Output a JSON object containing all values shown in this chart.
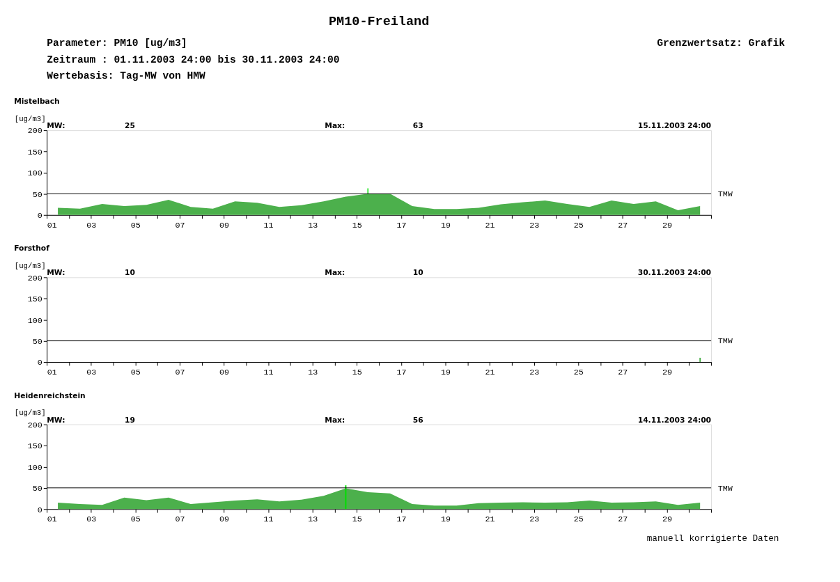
{
  "chart_data": [
    {
      "type": "other",
      "title": "PM10-Freiland",
      "annotations": [
        "Parameter: PM10 [ug/m3]",
        "Grenzwertsatz: Grafik",
        "Zeitraum  : 01.11.2003 24:00 bis 30.11.2003 24:00",
        "Wertebasis: Tag-MW von HMW"
      ]
    },
    {
      "type": "area",
      "title": "Mistelbach",
      "ylabel": "[ug/m3]",
      "annotations": [
        "MW:",
        "25",
        "Max:",
        "63",
        "15.11.2003  24:00"
      ],
      "xlim": [
        1,
        31
      ],
      "xticks": [
        {
          "value": 1,
          "label": "01"
        },
        {
          "value": 2,
          "label": null
        },
        {
          "value": 3,
          "label": "03"
        },
        {
          "value": 4,
          "label": null
        },
        {
          "value": 5,
          "label": "05"
        },
        {
          "value": 6,
          "label": null
        },
        {
          "value": 7,
          "label": "07"
        },
        {
          "value": 8,
          "label": null
        },
        {
          "value": 9,
          "label": "09"
        },
        {
          "value": 10,
          "label": null
        },
        {
          "value": 11,
          "label": "11"
        },
        {
          "value": 12,
          "label": null
        },
        {
          "value": 13,
          "label": "13"
        },
        {
          "value": 14,
          "label": null
        },
        {
          "value": 15,
          "label": "15"
        },
        {
          "value": 16,
          "label": null
        },
        {
          "value": 17,
          "label": "17"
        },
        {
          "value": 18,
          "label": null
        },
        {
          "value": 19,
          "label": "19"
        },
        {
          "value": 20,
          "label": null
        },
        {
          "value": 21,
          "label": "21"
        },
        {
          "value": 22,
          "label": null
        },
        {
          "value": 23,
          "label": "23"
        },
        {
          "value": 24,
          "label": null
        },
        {
          "value": 25,
          "label": "25"
        },
        {
          "value": 26,
          "label": null
        },
        {
          "value": 27,
          "label": "27"
        },
        {
          "value": 28,
          "label": null
        },
        {
          "value": 29,
          "label": "29"
        },
        {
          "value": 30,
          "label": null
        },
        {
          "value": 31,
          "label": null
        }
      ],
      "ylim": [
        0,
        200
      ],
      "yticks": [
        0,
        50,
        100,
        150,
        200
      ],
      "ref_lines": [
        {
          "axis": "y",
          "value": 50,
          "label": "TMW",
          "color": "#000000"
        }
      ],
      "series": [
        {
          "type": "area",
          "color": "#4cb04c",
          "x": [
            1.5,
            2.5,
            3.5,
            4.5,
            5.5,
            6.5,
            7.5,
            8.5,
            9.5,
            10.5,
            11.5,
            12.5,
            13.5,
            14.5,
            15.5,
            16.5,
            17.5,
            18.5,
            19.5,
            20.5,
            21.5,
            22.5,
            23.5,
            24.5,
            25.5,
            26.5,
            27.5,
            28.5,
            29.5,
            30.5
          ],
          "values": [
            17,
            15,
            26,
            21,
            24,
            36,
            19,
            15,
            32,
            29,
            19,
            23,
            32,
            43,
            50,
            50,
            21,
            14,
            14,
            17,
            25,
            30,
            34,
            26,
            19,
            34,
            26,
            32,
            11,
            21
          ]
        },
        {
          "type": "line",
          "color": "#00e000",
          "x": [
            15.5,
            15.5
          ],
          "values": [
            50,
            63
          ]
        }
      ]
    },
    {
      "type": "area",
      "title": "Forsthof",
      "ylabel": "[ug/m3]",
      "annotations": [
        "MW:",
        "10",
        "Max:",
        "10",
        "30.11.2003  24:00"
      ],
      "xlim": [
        1,
        31
      ],
      "xticks": [
        {
          "value": 1,
          "label": "01"
        },
        {
          "value": 2,
          "label": null
        },
        {
          "value": 3,
          "label": "03"
        },
        {
          "value": 4,
          "label": null
        },
        {
          "value": 5,
          "label": "05"
        },
        {
          "value": 6,
          "label": null
        },
        {
          "value": 7,
          "label": "07"
        },
        {
          "value": 8,
          "label": null
        },
        {
          "value": 9,
          "label": "09"
        },
        {
          "value": 10,
          "label": null
        },
        {
          "value": 11,
          "label": "11"
        },
        {
          "value": 12,
          "label": null
        },
        {
          "value": 13,
          "label": "13"
        },
        {
          "value": 14,
          "label": null
        },
        {
          "value": 15,
          "label": "15"
        },
        {
          "value": 16,
          "label": null
        },
        {
          "value": 17,
          "label": "17"
        },
        {
          "value": 18,
          "label": null
        },
        {
          "value": 19,
          "label": "19"
        },
        {
          "value": 20,
          "label": null
        },
        {
          "value": 21,
          "label": "21"
        },
        {
          "value": 22,
          "label": null
        },
        {
          "value": 23,
          "label": "23"
        },
        {
          "value": 24,
          "label": null
        },
        {
          "value": 25,
          "label": "25"
        },
        {
          "value": 26,
          "label": null
        },
        {
          "value": 27,
          "label": "27"
        },
        {
          "value": 28,
          "label": null
        },
        {
          "value": 29,
          "label": "29"
        },
        {
          "value": 30,
          "label": null
        },
        {
          "value": 31,
          "label": null
        }
      ],
      "ylim": [
        0,
        200
      ],
      "yticks": [
        0,
        50,
        100,
        150,
        200
      ],
      "ref_lines": [
        {
          "axis": "y",
          "value": 50,
          "label": "TMW",
          "color": "#000000"
        }
      ],
      "series": [
        {
          "type": "bar",
          "color": "#4cb04c",
          "x": [
            30.5
          ],
          "values": [
            10
          ]
        }
      ]
    },
    {
      "type": "area",
      "title": "Heidenreichstein",
      "ylabel": "[ug/m3]",
      "annotations": [
        "MW:",
        "19",
        "Max:",
        "56",
        "14.11.2003  24:00",
        "manuell korrigierte Daten"
      ],
      "xlim": [
        1,
        31
      ],
      "xticks": [
        {
          "value": 1,
          "label": "01"
        },
        {
          "value": 2,
          "label": null
        },
        {
          "value": 3,
          "label": "03"
        },
        {
          "value": 4,
          "label": null
        },
        {
          "value": 5,
          "label": "05"
        },
        {
          "value": 6,
          "label": null
        },
        {
          "value": 7,
          "label": "07"
        },
        {
          "value": 8,
          "label": null
        },
        {
          "value": 9,
          "label": "09"
        },
        {
          "value": 10,
          "label": null
        },
        {
          "value": 11,
          "label": "11"
        },
        {
          "value": 12,
          "label": null
        },
        {
          "value": 13,
          "label": "13"
        },
        {
          "value": 14,
          "label": null
        },
        {
          "value": 15,
          "label": "15"
        },
        {
          "value": 16,
          "label": null
        },
        {
          "value": 17,
          "label": "17"
        },
        {
          "value": 18,
          "label": null
        },
        {
          "value": 19,
          "label": "19"
        },
        {
          "value": 20,
          "label": null
        },
        {
          "value": 21,
          "label": "21"
        },
        {
          "value": 22,
          "label": null
        },
        {
          "value": 23,
          "label": "23"
        },
        {
          "value": 24,
          "label": null
        },
        {
          "value": 25,
          "label": "25"
        },
        {
          "value": 26,
          "label": null
        },
        {
          "value": 27,
          "label": "27"
        },
        {
          "value": 28,
          "label": null
        },
        {
          "value": 29,
          "label": "29"
        },
        {
          "value": 30,
          "label": null
        },
        {
          "value": 31,
          "label": null
        }
      ],
      "ylim": [
        0,
        200
      ],
      "yticks": [
        0,
        50,
        100,
        150,
        200
      ],
      "ref_lines": [
        {
          "axis": "y",
          "value": 50,
          "label": "TMW",
          "color": "#000000"
        }
      ],
      "series": [
        {
          "type": "area",
          "color": "#4cb04c",
          "x": [
            1.5,
            2.5,
            3.5,
            4.5,
            5.5,
            6.5,
            7.5,
            8.5,
            9.5,
            10.5,
            11.5,
            12.5,
            13.5,
            14.5,
            15.5,
            16.5,
            17.5,
            18.5,
            19.5,
            20.5,
            21.5,
            22.5,
            23.5,
            24.5,
            25.5,
            26.5,
            27.5,
            28.5,
            29.5,
            30.5
          ],
          "values": [
            15,
            12,
            10,
            27,
            21,
            27,
            12,
            16,
            20,
            23,
            18,
            22,
            31,
            49,
            40,
            37,
            12,
            8,
            8,
            14,
            15,
            16,
            15,
            16,
            20,
            15,
            16,
            18,
            10,
            15
          ]
        },
        {
          "type": "bar",
          "color": "#00e000",
          "x": [
            14.5
          ],
          "values": [
            56
          ]
        }
      ]
    }
  ]
}
